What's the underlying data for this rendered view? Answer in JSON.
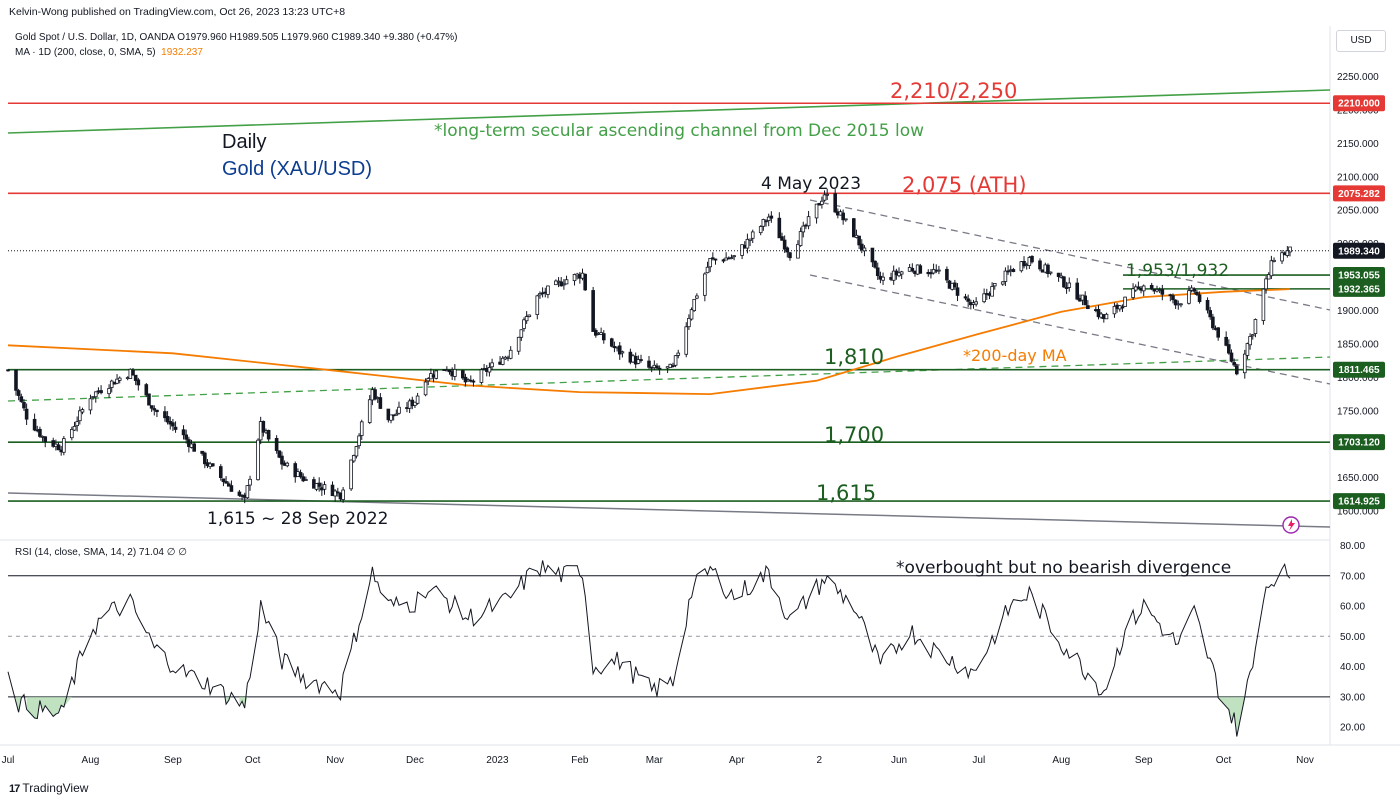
{
  "header": {
    "publisher_line": "Kelvin-Wong published on TradingView.com, Oct 26, 2023 13:23 UTC+8",
    "symbol_line": "Gold Spot / U.S. Dollar, 1D, OANDA  O1979.960  H1989.505  L1979.960  C1989.340  +9.380 (+0.47%)",
    "ma_line_prefix": "MA · 1D (200, close, 0, SMA, 5)",
    "ma_line_value": "1932.237",
    "rsi_line": "RSI (14, close, SMA, 14, 2)  71.04  ∅  ∅",
    "currency_button": "USD"
  },
  "footer": {
    "brand": "TradingView"
  },
  "annotations": {
    "daily": "Daily",
    "instrument": "Gold (XAU/USD)",
    "channel_note": "*long-term secular ascending channel from Dec 2015 low",
    "top_resistance": "2,210/2,250",
    "ath": "2,075 (ATH)",
    "may_high": "4 May 2023",
    "mid_level": "1,953/1,932",
    "level_1810": "1,810",
    "ma_note": "*200-day MA",
    "level_1700": "1,700",
    "level_1615": "1,615",
    "sep_low": "1,615 ~ 28 Sep 2022",
    "rsi_note": "*overbought but no bearish divergence"
  },
  "colors": {
    "up_candle": "#131722",
    "down_candle": "#131722",
    "ma200": "#f57c00",
    "resistance": "#e53935",
    "support": "#1b5e20",
    "channel": "#43a047",
    "downtrend": "#787b86",
    "price_badge": "#131722",
    "level_badge": "#1b5e20",
    "red_badge": "#e53935"
  },
  "chart_data": [
    {
      "type": "candlestick",
      "title": "Gold Spot / U.S. Dollar, 1D, OANDA",
      "ylim": [
        1575,
        2275
      ],
      "y_ticks": [
        "2250.000",
        "2200.000",
        "2150.000",
        "2100.000",
        "2050.000",
        "2000.000",
        "1950.000",
        "1900.000",
        "1850.000",
        "1800.000",
        "1750.000",
        "1700.000",
        "1650.000",
        "1600.000"
      ],
      "x_ticks": [
        "Jul",
        "Aug",
        "Sep",
        "Oct",
        "Nov",
        "Dec",
        "2023",
        "Feb",
        "Mar",
        "Apr",
        "2",
        "Jun",
        "Jul",
        "Aug",
        "Sep",
        "Oct",
        "Nov"
      ],
      "price_path": [
        {
          "date": "2022-07-01",
          "price": 1811
        },
        {
          "date": "2022-07-08",
          "price": 1742
        },
        {
          "date": "2022-07-15",
          "price": 1706
        },
        {
          "date": "2022-07-21",
          "price": 1695
        },
        {
          "date": "2022-08-01",
          "price": 1772
        },
        {
          "date": "2022-08-08",
          "price": 1790
        },
        {
          "date": "2022-08-16",
          "price": 1808
        },
        {
          "date": "2022-08-25",
          "price": 1752
        },
        {
          "date": "2022-09-05",
          "price": 1712
        },
        {
          "date": "2022-09-15",
          "price": 1666
        },
        {
          "date": "2022-09-28",
          "price": 1615
        },
        {
          "date": "2022-10-04",
          "price": 1728
        },
        {
          "date": "2022-10-12",
          "price": 1672
        },
        {
          "date": "2022-10-21",
          "price": 1646
        },
        {
          "date": "2022-11-03",
          "price": 1625
        },
        {
          "date": "2022-11-07",
          "price": 1676
        },
        {
          "date": "2022-11-15",
          "price": 1780
        },
        {
          "date": "2022-11-21",
          "price": 1738
        },
        {
          "date": "2022-12-01",
          "price": 1765
        },
        {
          "date": "2022-12-05",
          "price": 1800
        },
        {
          "date": "2022-12-13",
          "price": 1815
        },
        {
          "date": "2022-12-21",
          "price": 1790
        },
        {
          "date": "2023-01-05",
          "price": 1835
        },
        {
          "date": "2023-01-16",
          "price": 1920
        },
        {
          "date": "2023-01-26",
          "price": 1945
        },
        {
          "date": "2023-02-02",
          "price": 1955
        },
        {
          "date": "2023-02-06",
          "price": 1870
        },
        {
          "date": "2023-02-16",
          "price": 1838
        },
        {
          "date": "2023-02-28",
          "price": 1812
        },
        {
          "date": "2023-03-08",
          "price": 1813
        },
        {
          "date": "2023-03-15",
          "price": 1905
        },
        {
          "date": "2023-03-22",
          "price": 1975
        },
        {
          "date": "2023-03-31",
          "price": 1980
        },
        {
          "date": "2023-04-13",
          "price": 2040
        },
        {
          "date": "2023-04-21",
          "price": 1985
        },
        {
          "date": "2023-05-04",
          "price": 2075
        },
        {
          "date": "2023-05-15",
          "price": 2015
        },
        {
          "date": "2023-05-25",
          "price": 1945
        },
        {
          "date": "2023-06-05",
          "price": 1963
        },
        {
          "date": "2023-06-15",
          "price": 1958
        },
        {
          "date": "2023-06-29",
          "price": 1905
        },
        {
          "date": "2023-07-13",
          "price": 1960
        },
        {
          "date": "2023-07-20",
          "price": 1978
        },
        {
          "date": "2023-08-01",
          "price": 1945
        },
        {
          "date": "2023-08-17",
          "price": 1888
        },
        {
          "date": "2023-08-25",
          "price": 1915
        },
        {
          "date": "2023-09-01",
          "price": 1940
        },
        {
          "date": "2023-09-14",
          "price": 1912
        },
        {
          "date": "2023-09-20",
          "price": 1930
        },
        {
          "date": "2023-09-29",
          "price": 1865
        },
        {
          "date": "2023-10-06",
          "price": 1810
        },
        {
          "date": "2023-10-12",
          "price": 1870
        },
        {
          "date": "2023-10-16",
          "price": 1930
        },
        {
          "date": "2023-10-20",
          "price": 1980
        },
        {
          "date": "2023-10-26",
          "price": 1989
        }
      ],
      "ma200_path": [
        {
          "date": "2022-07-01",
          "price": 1848
        },
        {
          "date": "2022-09-01",
          "price": 1836
        },
        {
          "date": "2022-11-01",
          "price": 1810
        },
        {
          "date": "2022-12-21",
          "price": 1788
        },
        {
          "date": "2023-02-01",
          "price": 1778
        },
        {
          "date": "2023-03-22",
          "price": 1775
        },
        {
          "date": "2023-05-01",
          "price": 1795
        },
        {
          "date": "2023-06-01",
          "price": 1832
        },
        {
          "date": "2023-07-01",
          "price": 1865
        },
        {
          "date": "2023-08-01",
          "price": 1898
        },
        {
          "date": "2023-09-01",
          "price": 1920
        },
        {
          "date": "2023-10-01",
          "price": 1928
        },
        {
          "date": "2023-10-26",
          "price": 1932
        }
      ],
      "horizontal_levels": [
        {
          "label": "2210.000",
          "price": 2210,
          "style": "resistance"
        },
        {
          "label": "2075.282",
          "price": 2075.282,
          "style": "resistance"
        },
        {
          "label": "1953.055",
          "price": 1953.055,
          "style": "support"
        },
        {
          "label": "1932.365",
          "price": 1932.365,
          "style": "support"
        },
        {
          "label": "1811.465",
          "price": 1811.465,
          "style": "support"
        },
        {
          "label": "1703.120",
          "price": 1703.12,
          "style": "support"
        },
        {
          "label": "1614.925",
          "price": 1614.925,
          "style": "support"
        }
      ],
      "last_price": {
        "label": "1989.340",
        "price": 1989.34
      }
    },
    {
      "type": "line",
      "title": "RSI (14, close, SMA, 14, 2)",
      "ylim": [
        10,
        80
      ],
      "y_ticks": [
        "80.00",
        "70.00",
        "60.00",
        "50.00",
        "40.00",
        "30.00",
        "20.00"
      ],
      "bands": [
        70,
        50,
        30
      ],
      "last_value": 71.04,
      "rsi_path": [
        {
          "date": "2022-07-01",
          "rsi": 40
        },
        {
          "date": "2022-07-05",
          "rsi": 28
        },
        {
          "date": "2022-07-15",
          "rsi": 25
        },
        {
          "date": "2022-07-21",
          "rsi": 24
        },
        {
          "date": "2022-08-01",
          "rsi": 52
        },
        {
          "date": "2022-08-08",
          "rsi": 58
        },
        {
          "date": "2022-08-16",
          "rsi": 61
        },
        {
          "date": "2022-08-25",
          "rsi": 46
        },
        {
          "date": "2022-09-05",
          "rsi": 38
        },
        {
          "date": "2022-09-15",
          "rsi": 34
        },
        {
          "date": "2022-09-28",
          "rsi": 27
        },
        {
          "date": "2022-10-04",
          "rsi": 60
        },
        {
          "date": "2022-10-12",
          "rsi": 42
        },
        {
          "date": "2022-10-21",
          "rsi": 36
        },
        {
          "date": "2022-11-03",
          "rsi": 32
        },
        {
          "date": "2022-11-07",
          "rsi": 45
        },
        {
          "date": "2022-11-15",
          "rsi": 71
        },
        {
          "date": "2022-11-21",
          "rsi": 60
        },
        {
          "date": "2022-12-01",
          "rsi": 61
        },
        {
          "date": "2022-12-05",
          "rsi": 66
        },
        {
          "date": "2022-12-13",
          "rsi": 62
        },
        {
          "date": "2022-12-21",
          "rsi": 56
        },
        {
          "date": "2023-01-05",
          "rsi": 62
        },
        {
          "date": "2023-01-16",
          "rsi": 73
        },
        {
          "date": "2023-01-26",
          "rsi": 70
        },
        {
          "date": "2023-02-02",
          "rsi": 72
        },
        {
          "date": "2023-02-06",
          "rsi": 40
        },
        {
          "date": "2023-02-16",
          "rsi": 42
        },
        {
          "date": "2023-02-28",
          "rsi": 32
        },
        {
          "date": "2023-03-08",
          "rsi": 35
        },
        {
          "date": "2023-03-15",
          "rsi": 65
        },
        {
          "date": "2023-03-22",
          "rsi": 72
        },
        {
          "date": "2023-03-31",
          "rsi": 63
        },
        {
          "date": "2023-04-13",
          "rsi": 71
        },
        {
          "date": "2023-04-21",
          "rsi": 55
        },
        {
          "date": "2023-05-04",
          "rsi": 69
        },
        {
          "date": "2023-05-15",
          "rsi": 60
        },
        {
          "date": "2023-05-25",
          "rsi": 40
        },
        {
          "date": "2023-06-05",
          "rsi": 52
        },
        {
          "date": "2023-06-15",
          "rsi": 45
        },
        {
          "date": "2023-06-29",
          "rsi": 38
        },
        {
          "date": "2023-07-13",
          "rsi": 60
        },
        {
          "date": "2023-07-20",
          "rsi": 64
        },
        {
          "date": "2023-08-01",
          "rsi": 48
        },
        {
          "date": "2023-08-17",
          "rsi": 32
        },
        {
          "date": "2023-08-25",
          "rsi": 52
        },
        {
          "date": "2023-09-01",
          "rsi": 60
        },
        {
          "date": "2023-09-14",
          "rsi": 47
        },
        {
          "date": "2023-09-20",
          "rsi": 58
        },
        {
          "date": "2023-09-29",
          "rsi": 33
        },
        {
          "date": "2023-10-06",
          "rsi": 20
        },
        {
          "date": "2023-10-12",
          "rsi": 40
        },
        {
          "date": "2023-10-16",
          "rsi": 65
        },
        {
          "date": "2023-10-20",
          "rsi": 70
        },
        {
          "date": "2023-10-26",
          "rsi": 71
        }
      ]
    }
  ]
}
